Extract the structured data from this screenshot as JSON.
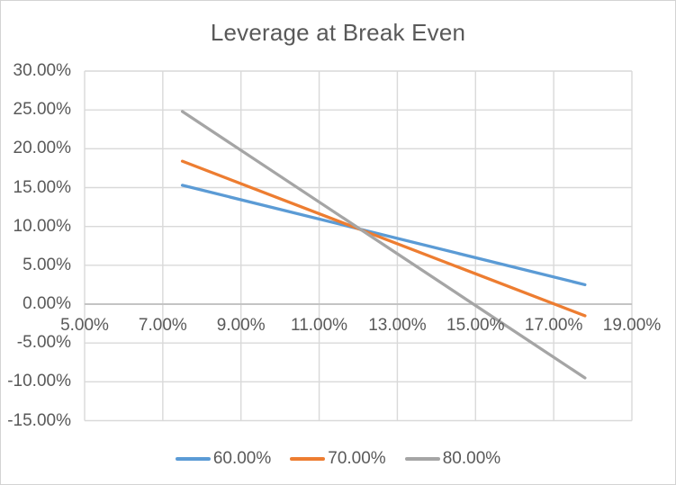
{
  "chart_data": {
    "type": "line",
    "title": "Leverage at Break Even",
    "xlabel": "",
    "ylabel": "",
    "xlim": [
      5,
      19
    ],
    "ylim": [
      -15,
      30
    ],
    "x_tick_step": 2,
    "y_tick_step": 5,
    "x_ticks": [
      "5.00%",
      "7.00%",
      "9.00%",
      "11.00%",
      "13.00%",
      "15.00%",
      "17.00%",
      "19.00%"
    ],
    "y_ticks": [
      "30.00%",
      "25.00%",
      "20.00%",
      "15.00%",
      "10.00%",
      "5.00%",
      "0.00%",
      "-5.00%",
      "-10.00%",
      "-15.00%"
    ],
    "grid": true,
    "legend_position": "bottom-center",
    "series": [
      {
        "name": "60.00%",
        "color": "#5B9BD5",
        "x": [
          7.5,
          17.8
        ],
        "y": [
          15.3,
          2.5
        ]
      },
      {
        "name": "70.00%",
        "color": "#ED7D31",
        "x": [
          7.5,
          17.8
        ],
        "y": [
          18.4,
          -1.5
        ]
      },
      {
        "name": "80.00%",
        "color": "#A5A5A5",
        "x": [
          7.5,
          17.8
        ],
        "y": [
          24.8,
          -9.5
        ]
      }
    ]
  },
  "colors": {
    "background": "#FFFFFF",
    "border": "#D3D3D3",
    "gridline": "#D9D9D9",
    "axis_line": "#BFBFBF",
    "text": "#595959"
  }
}
